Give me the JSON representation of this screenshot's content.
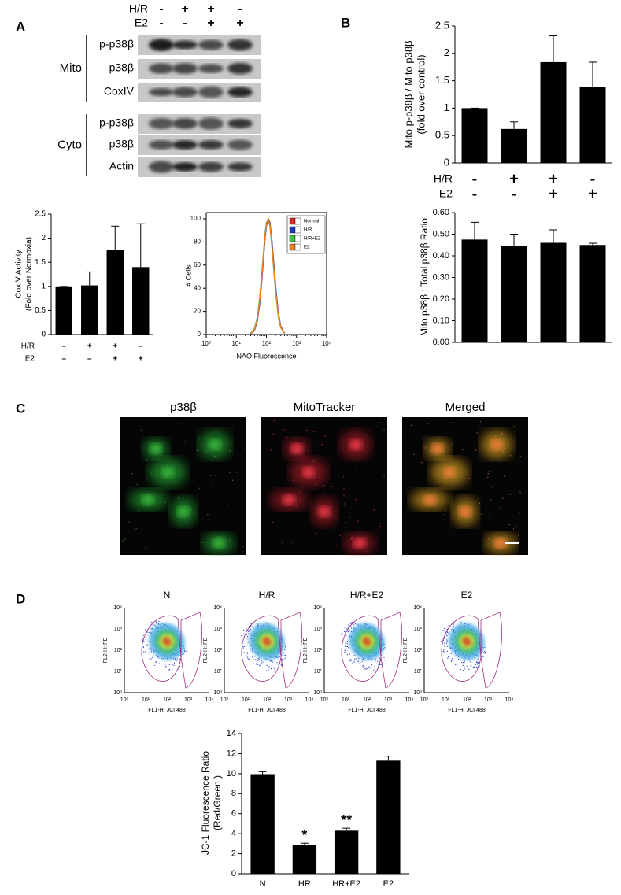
{
  "figure": {
    "panel_labels": [
      "A",
      "B",
      "C",
      "D"
    ],
    "blot": {
      "conditions": [
        {
          "label": "H/R",
          "signs": [
            "-",
            "+",
            "+",
            "-"
          ]
        },
        {
          "label": "E2",
          "signs": [
            "-",
            "-",
            "+",
            "+"
          ]
        }
      ],
      "groups": [
        {
          "label": "Mito",
          "rows": [
            "p-p38β",
            "p38β",
            "CoxIV"
          ]
        },
        {
          "label": "Cyto",
          "rows": [
            "p-p38β",
            "p38β",
            "Actin"
          ]
        }
      ]
    },
    "microscopy": {
      "titles": [
        "p38β",
        "MitoTracker",
        "Merged"
      ]
    },
    "flow_plots": {
      "titles": [
        "N",
        "H/R",
        "H/R+E2",
        "E2"
      ],
      "x_label": "FL1-H: JCI 488",
      "y_label": "FL2-H: PE",
      "ticks": [
        "10⁰",
        "10¹",
        "10²",
        "10³",
        "10⁴"
      ]
    }
  },
  "chart_data": [
    {
      "type": "bar",
      "y_label": [
        "Mito p-p38β / Mito p38β",
        "(fold over control)"
      ],
      "values": [
        1,
        0.62,
        1.84,
        1.39
      ],
      "errors": [
        0,
        0.13,
        0.48,
        0.45
      ],
      "color": "#000000",
      "ylim": [
        0,
        2.5
      ],
      "yticks": [
        0,
        0.5,
        1,
        1.5,
        2,
        2.5
      ],
      "conditions": [
        {
          "label": "H/R",
          "signs": [
            "-",
            "+",
            "+",
            "-"
          ]
        },
        {
          "label": "E2",
          "signs": [
            "-",
            "-",
            "+",
            "+"
          ]
        }
      ]
    },
    {
      "type": "bar",
      "y_label": [
        "Mito p38β : Total p38β Ratio"
      ],
      "values": [
        0.475,
        0.445,
        0.46,
        0.45
      ],
      "errors": [
        0.08,
        0.055,
        0.06,
        0.008
      ],
      "color": "#000000",
      "ylim": [
        0,
        0.6
      ],
      "yticks": [
        {
          "value": 0,
          "label": "0.00"
        },
        {
          "value": 0.1,
          "label": "0.10"
        },
        {
          "value": 0.2,
          "label": "0.20"
        },
        {
          "value": 0.3,
          "label": "0.30"
        },
        {
          "value": 0.4,
          "label": "0.40"
        },
        {
          "value": 0.5,
          "label": "0.50"
        },
        {
          "value": 0.6,
          "label": "0.60"
        }
      ]
    },
    {
      "type": "bar",
      "y_label": [
        "CoxIV Activity",
        "(Fold over Normoxia)"
      ],
      "values": [
        1,
        1.02,
        1.75,
        1.4
      ],
      "errors": [
        0,
        0.28,
        0.5,
        0.9
      ],
      "color": "#000000",
      "ylim": [
        0,
        2.5
      ],
      "yticks": [
        0,
        0.5,
        1,
        1.5,
        2,
        2.5
      ],
      "conditions": [
        {
          "label": "H/R",
          "signs": [
            "–",
            "+",
            "+",
            "–"
          ]
        },
        {
          "label": "E2",
          "signs": [
            "–",
            "–",
            "+",
            "+"
          ]
        }
      ]
    },
    {
      "type": "line",
      "x_label": "NAO Fluorescence",
      "y_label": "# Cells",
      "log_x": true,
      "legend": "upper right",
      "x": [
        30,
        40,
        50,
        60,
        70,
        80,
        90,
        100,
        115,
        130,
        150,
        175,
        200,
        250,
        300,
        400
      ],
      "xlim": [
        1,
        10000
      ],
      "xticks": [
        {
          "value": 1,
          "label": "10⁰"
        },
        {
          "value": 10,
          "label": "10¹"
        },
        {
          "value": 100,
          "label": "10²"
        },
        {
          "value": 1000,
          "label": "10³"
        },
        {
          "value": 10000,
          "label": "10⁴"
        }
      ],
      "ylim": [
        0,
        100
      ],
      "yticks": [
        0,
        20,
        40,
        60,
        80,
        100
      ],
      "series": [
        {
          "name": "Normal",
          "color": "#e02828",
          "values": [
            0.5,
            3.9,
            13,
            29,
            49,
            68,
            84,
            95,
            100,
            96,
            81,
            60,
            41,
            17,
            7,
            1
          ]
        },
        {
          "name": "H/R",
          "color": "#2038c0",
          "values": [
            0.4,
            3.5,
            12,
            27,
            47,
            66,
            83,
            94,
            100,
            97,
            83,
            62,
            43,
            18,
            7,
            1
          ]
        },
        {
          "name": "H/R+E2",
          "color": "#40c040",
          "values": [
            0.8,
            5,
            15,
            32,
            52,
            71,
            87,
            97,
            99,
            94,
            78,
            56,
            38,
            15,
            6,
            1
          ]
        },
        {
          "name": "E2",
          "color": "#f08020",
          "values": [
            0.5,
            4,
            13,
            30,
            50,
            69,
            85,
            96,
            100,
            95,
            80,
            58,
            40,
            16,
            6,
            1
          ]
        }
      ]
    },
    {
      "type": "bar",
      "y_label": [
        "JC-1 Fluorescence Ratio",
        "(Red/Green )"
      ],
      "categories": [
        "N",
        "HR",
        "HR+E2",
        "E2"
      ],
      "values": [
        9.95,
        2.9,
        4.3,
        11.3
      ],
      "errors": [
        0.25,
        0.15,
        0.25,
        0.45
      ],
      "annotations": [
        null,
        "*",
        "**",
        null
      ],
      "color": "#000000",
      "ylim": [
        0,
        14
      ],
      "yticks": [
        0,
        2,
        4,
        6,
        8,
        10,
        12,
        14
      ]
    }
  ]
}
